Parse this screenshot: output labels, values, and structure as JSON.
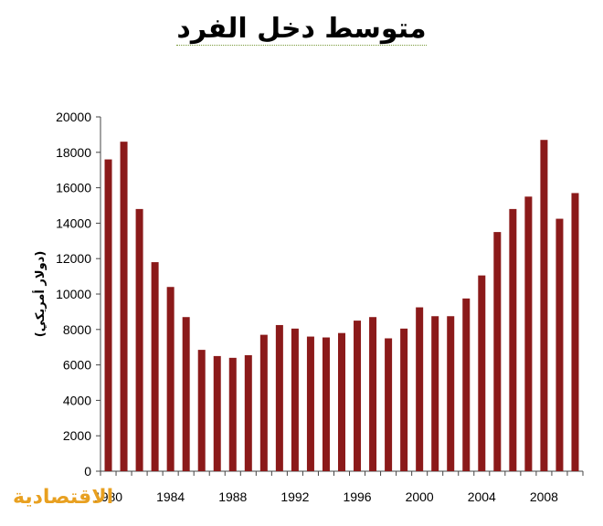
{
  "chart_data": {
    "type": "bar",
    "title": "متوسط دخل الفرد",
    "ylabel": "(دولار أمريكي)",
    "xlabel": "",
    "ylim": [
      0,
      20000
    ],
    "yticks": [
      "0",
      "2000",
      "4000",
      "6000",
      "8000",
      "10000",
      "12000",
      "14000",
      "16000",
      "18000",
      "20000"
    ],
    "xticks": [
      "1980",
      "1984",
      "1988",
      "1992",
      "1996",
      "2000",
      "2004",
      "2008"
    ],
    "categories": [
      "1980",
      "1981",
      "1982",
      "1983",
      "1984",
      "1985",
      "1986",
      "1987",
      "1988",
      "1989",
      "1990",
      "1991",
      "1992",
      "1993",
      "1994",
      "1995",
      "1996",
      "1997",
      "1998",
      "1999",
      "2000",
      "2001",
      "2002",
      "2003",
      "2004",
      "2005",
      "2006",
      "2007",
      "2008",
      "2009",
      "2010"
    ],
    "values": [
      17600,
      18600,
      14800,
      11800,
      10400,
      8700,
      6850,
      6500,
      6400,
      6550,
      7700,
      8250,
      8050,
      7600,
      7550,
      7800,
      8500,
      8700,
      7500,
      8050,
      9250,
      8750,
      8750,
      9750,
      11050,
      13500,
      14800,
      15500,
      18700,
      14250,
      15700
    ],
    "bar_color": "#8b1a1a",
    "grid": false,
    "legend": "none"
  },
  "logo_text": "الاقتصادية"
}
